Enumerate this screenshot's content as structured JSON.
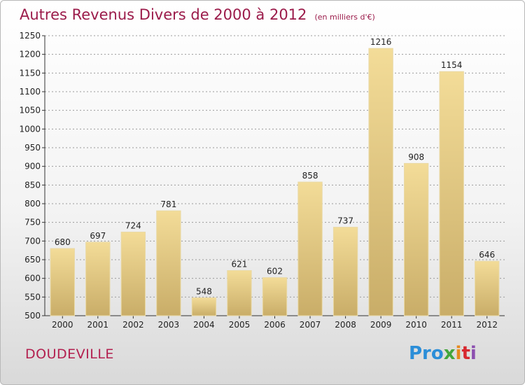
{
  "header": {
    "title": "Autres Revenus Divers de 2000 à 2012",
    "subtitle": "(en milliers d'€)"
  },
  "footer": {
    "commune": "DOUDEVILLE",
    "logo": [
      "Pro",
      "x",
      "i",
      "t",
      "i"
    ]
  },
  "colors": {
    "bar_light": "#f3dc98",
    "bar_dark": "#c9ad68",
    "title": "#9b1b4a",
    "grid": "#9a9a9a"
  },
  "chart_data": {
    "type": "bar",
    "title": "Autres Revenus Divers de 2000 à 2012",
    "subtitle": "(en milliers d'€)",
    "categories": [
      "2000",
      "2001",
      "2002",
      "2003",
      "2004",
      "2005",
      "2006",
      "2007",
      "2008",
      "2009",
      "2010",
      "2011",
      "2012"
    ],
    "values": [
      680,
      697,
      724,
      781,
      548,
      621,
      602,
      858,
      737,
      1216,
      908,
      1154,
      646
    ],
    "ylim": [
      500,
      1250
    ],
    "yticks": [
      500,
      550,
      600,
      650,
      700,
      750,
      800,
      850,
      900,
      950,
      1000,
      1050,
      1100,
      1150,
      1200,
      1250
    ],
    "grid": true,
    "grid_style": "dashed-horizontal",
    "data_labels": true
  }
}
